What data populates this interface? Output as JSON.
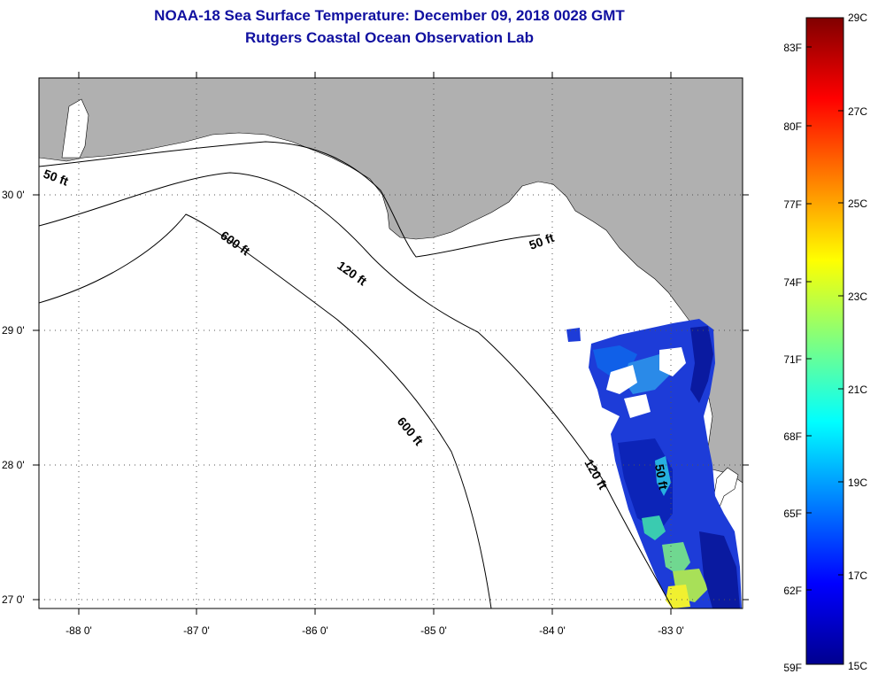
{
  "title": "NOAA-18 Sea Surface Temperature:  December 09, 2018 0028 GMT",
  "subtitle": "Rutgers Coastal Ocean Observation Lab",
  "lon_labels": [
    "-88 0'",
    "-87 0'",
    "-86 0'",
    "-85 0'",
    "-84 0'",
    "-83 0'"
  ],
  "lat_labels": [
    "30 0'",
    "29 0'",
    "28 0'",
    "27 0'"
  ],
  "contours": [
    "50 ft",
    "600 ft",
    "120 ft",
    "50 ft",
    "600 ft",
    "120 ft",
    "50 ft"
  ],
  "colorbar": {
    "fahrenheit": [
      "83F",
      "80F",
      "77F",
      "74F",
      "71F",
      "68F",
      "65F",
      "62F",
      "59F"
    ],
    "celsius": [
      "29C",
      "27C",
      "25C",
      "23C",
      "21C",
      "19C",
      "17C",
      "15C"
    ],
    "min_c": 15,
    "max_c": 29
  },
  "colors": {
    "title": "#1010a0",
    "land": "#b0b0b0",
    "ocean": "#ffffff"
  }
}
